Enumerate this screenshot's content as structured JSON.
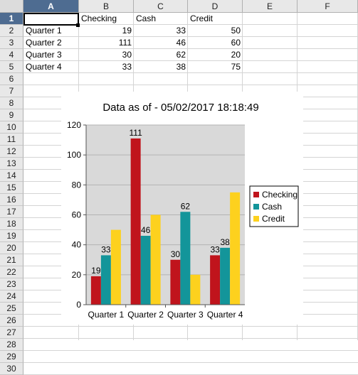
{
  "sheet": {
    "columns": [
      "A",
      "B",
      "C",
      "D",
      "E",
      "F"
    ],
    "rows": [
      "1",
      "2",
      "3",
      "4",
      "5",
      "6",
      "7",
      "8",
      "9",
      "10",
      "11",
      "12",
      "13",
      "14",
      "15",
      "16",
      "17",
      "18",
      "19",
      "20",
      "21",
      "22",
      "23",
      "24",
      "25",
      "26",
      "27",
      "28",
      "29",
      "30"
    ],
    "header_row": [
      "",
      "Checking",
      "Cash",
      "Credit"
    ],
    "data_rows": [
      [
        "Quarter 1",
        "19",
        "33",
        "50"
      ],
      [
        "Quarter 2",
        "111",
        "46",
        "60"
      ],
      [
        "Quarter 3",
        "30",
        "62",
        "20"
      ],
      [
        "Quarter 4",
        "33",
        "38",
        "75"
      ]
    ],
    "selected_cell": "A1",
    "selection_color": "#4e6c91"
  },
  "chart_data": {
    "type": "bar",
    "title": "Data as of - 05/02/2017 18:18:49",
    "categories": [
      "Quarter 1",
      "Quarter 2",
      "Quarter 3",
      "Quarter 4"
    ],
    "series": [
      {
        "name": "Checking",
        "values": [
          19,
          111,
          30,
          33
        ],
        "color": "#c0141c"
      },
      {
        "name": "Cash",
        "values": [
          33,
          46,
          62,
          38
        ],
        "color": "#13959a"
      },
      {
        "name": "Credit",
        "values": [
          50,
          60,
          20,
          75
        ],
        "color": "#fdd11e"
      }
    ],
    "data_labels_series": [
      "Checking",
      "Cash"
    ],
    "ylim": [
      0,
      120
    ],
    "yticks": [
      "0",
      "20",
      "40",
      "60",
      "80",
      "100",
      "120"
    ],
    "xlabel": "",
    "ylabel": "",
    "grid": "horizontal",
    "plot_background": "#d9d9d9",
    "gridline_color": "#b3b3b3",
    "legend_placement": "right"
  }
}
